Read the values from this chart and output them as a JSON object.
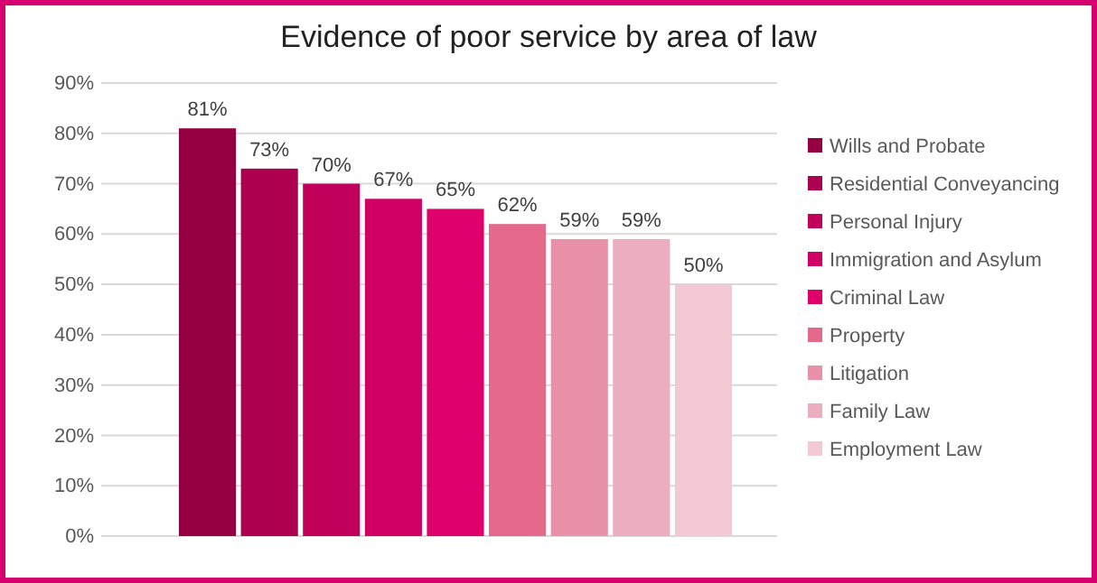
{
  "chart_data": {
    "type": "bar",
    "title": "Evidence of poor service by area of law",
    "categories": [
      null
    ],
    "series": [
      {
        "name": "Wills and Probate",
        "color": "#960042",
        "values": [
          81
        ],
        "value_labels": [
          "81%"
        ]
      },
      {
        "name": "Residential Conveyancing",
        "color": "#ad004f",
        "values": [
          73
        ],
        "value_labels": [
          "73%"
        ]
      },
      {
        "name": "Personal Injury",
        "color": "#c0005a",
        "values": [
          70
        ],
        "value_labels": [
          "70%"
        ]
      },
      {
        "name": "Immigration and Asylum",
        "color": "#d10064",
        "values": [
          67
        ],
        "value_labels": [
          "67%"
        ]
      },
      {
        "name": "Criminal Law",
        "color": "#e0006c",
        "values": [
          65
        ],
        "value_labels": [
          "65%"
        ]
      },
      {
        "name": "Property",
        "color": "#e4698c",
        "values": [
          62
        ],
        "value_labels": [
          "62%"
        ]
      },
      {
        "name": "Litigation",
        "color": "#e891a8",
        "values": [
          59
        ],
        "value_labels": [
          "59%"
        ]
      },
      {
        "name": "Family Law",
        "color": "#ecadbf",
        "values": [
          59
        ],
        "value_labels": [
          "59%"
        ]
      },
      {
        "name": "Employment Law",
        "color": "#f2c9d4",
        "values": [
          50
        ],
        "value_labels": [
          "50%"
        ]
      }
    ],
    "ylim": [
      0,
      90
    ],
    "yticks": [
      {
        "value": 0,
        "label": "0%"
      },
      {
        "value": 10,
        "label": "10%"
      },
      {
        "value": 20,
        "label": "20%"
      },
      {
        "value": 30,
        "label": "30%"
      },
      {
        "value": 40,
        "label": "40%"
      },
      {
        "value": 50,
        "label": "50%"
      },
      {
        "value": 60,
        "label": "60%"
      },
      {
        "value": 70,
        "label": "70%"
      },
      {
        "value": 80,
        "label": "80%"
      },
      {
        "value": 90,
        "label": "90%"
      }
    ],
    "grid": "y",
    "legend": "right"
  }
}
